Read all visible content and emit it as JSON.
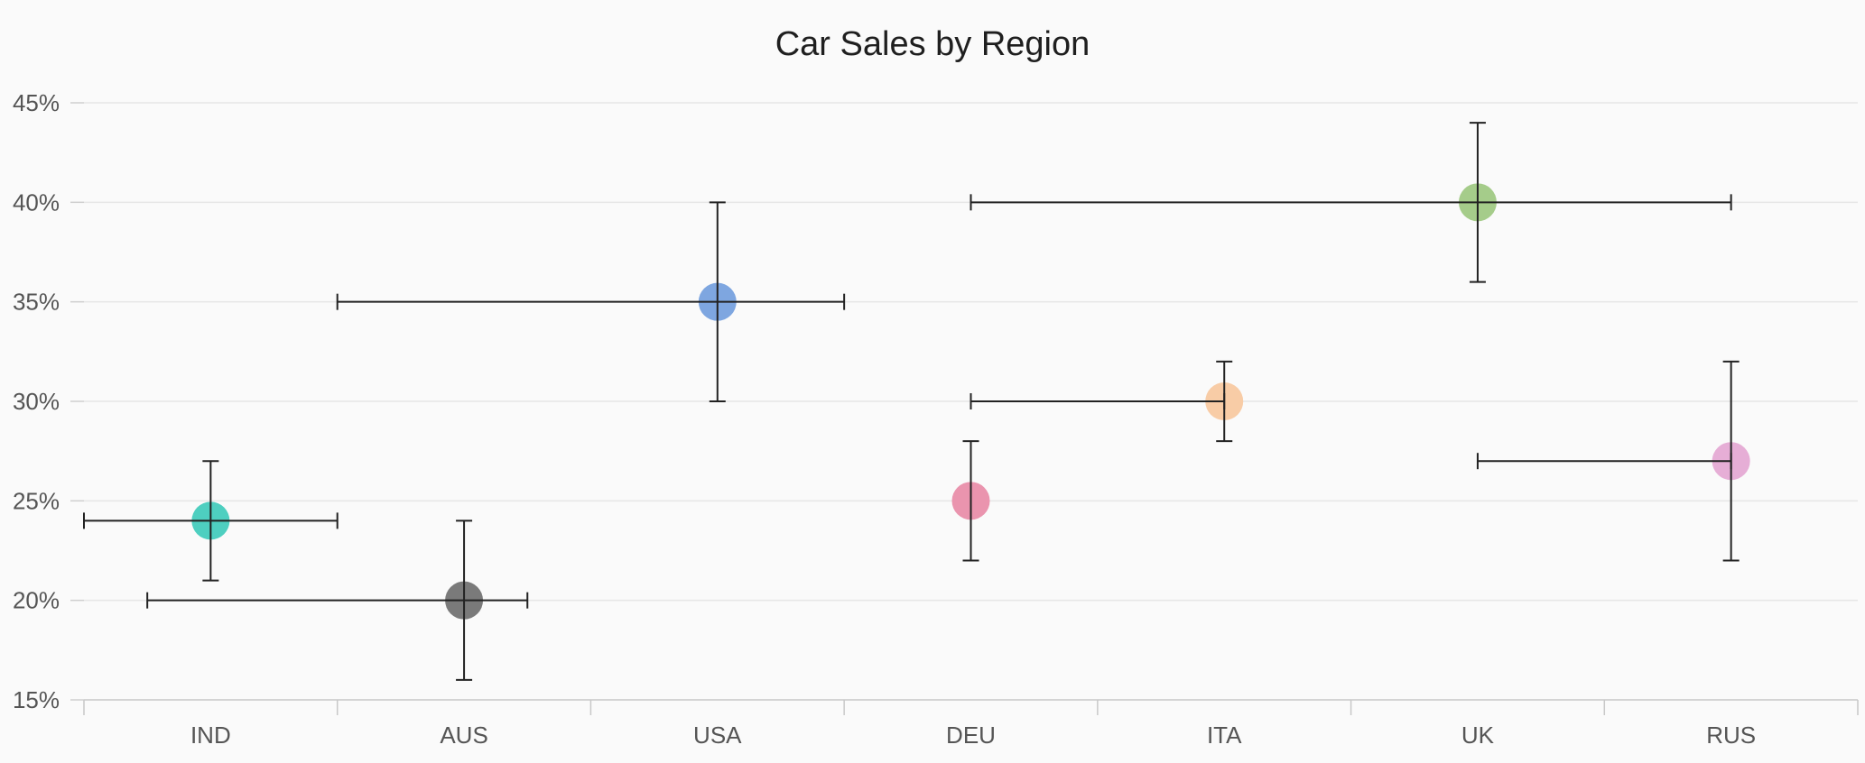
{
  "chart_data": {
    "type": "scatter",
    "title": "Car Sales by Region",
    "xlabel": "",
    "ylabel": "",
    "categories": [
      "IND",
      "AUS",
      "USA",
      "DEU",
      "ITA",
      "UK",
      "RUS"
    ],
    "ylim": [
      15,
      45
    ],
    "y_ticks": [
      15,
      20,
      25,
      30,
      35,
      40,
      45
    ],
    "y_tick_labels": [
      "15%",
      "20%",
      "25%",
      "30%",
      "35%",
      "40%",
      "45%"
    ],
    "grid": true,
    "legend": "none",
    "points": [
      {
        "category": "IND",
        "y": 24,
        "y_err": [
          21,
          27
        ],
        "x_err": [
          0.0,
          1.0
        ],
        "color": "#4ecfc0"
      },
      {
        "category": "AUS",
        "y": 20,
        "y_err": [
          16,
          24
        ],
        "x_err": [
          0.25,
          1.75
        ],
        "color": "#7a7a7a"
      },
      {
        "category": "USA",
        "y": 35,
        "y_err": [
          30,
          40
        ],
        "x_err": [
          1.0,
          3.0
        ],
        "color": "#7ea6e0"
      },
      {
        "category": "DEU",
        "y": 25,
        "y_err": [
          22,
          28
        ],
        "x_err": null,
        "color": "#ea94ae"
      },
      {
        "category": "ITA",
        "y": 30,
        "y_err": [
          28,
          32
        ],
        "x_err": [
          3.5,
          4.5
        ],
        "color": "#f8cca6"
      },
      {
        "category": "UK",
        "y": 40,
        "y_err": [
          36,
          44
        ],
        "x_err": [
          3.5,
          6.5
        ],
        "color": "#a5cc8a"
      },
      {
        "category": "RUS",
        "y": 27,
        "y_err": [
          22,
          32
        ],
        "x_err": [
          5.5,
          6.5
        ],
        "color": "#e6aed6"
      }
    ]
  }
}
